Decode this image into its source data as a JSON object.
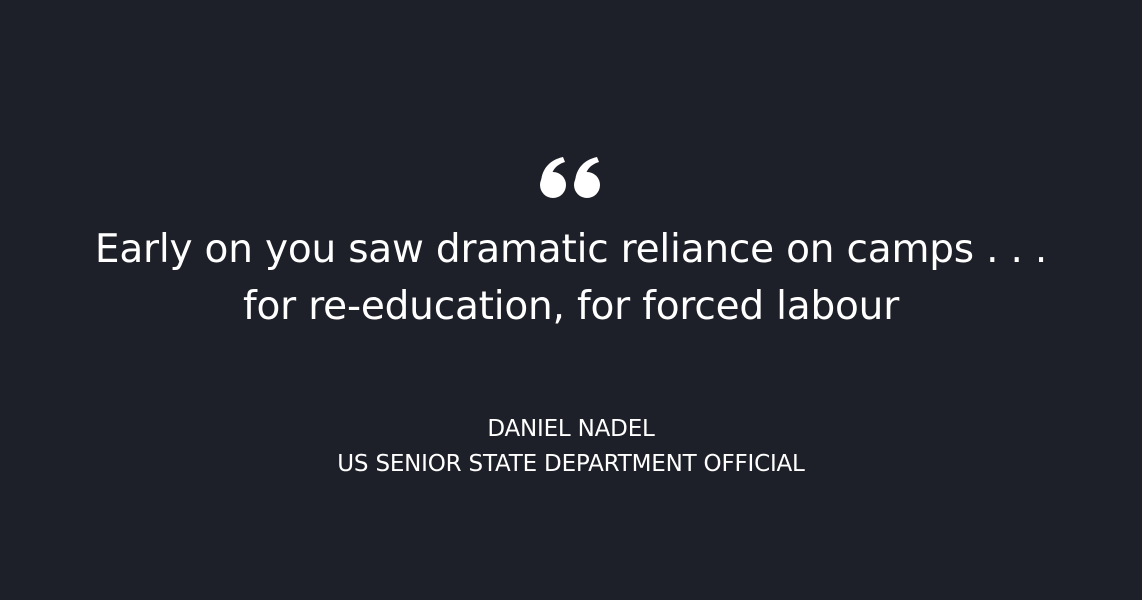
{
  "quote": {
    "icon": "open-quote-icon",
    "line_1": "Early on you saw dramatic reliance on camps . . .",
    "line_2": "for re-education, for forced labour"
  },
  "attribution": {
    "name": "DANIEL NADEL",
    "title": "US SENIOR STATE DEPARTMENT OFFICIAL"
  },
  "colors": {
    "background": "#1d2028",
    "text": "#ffffff"
  }
}
